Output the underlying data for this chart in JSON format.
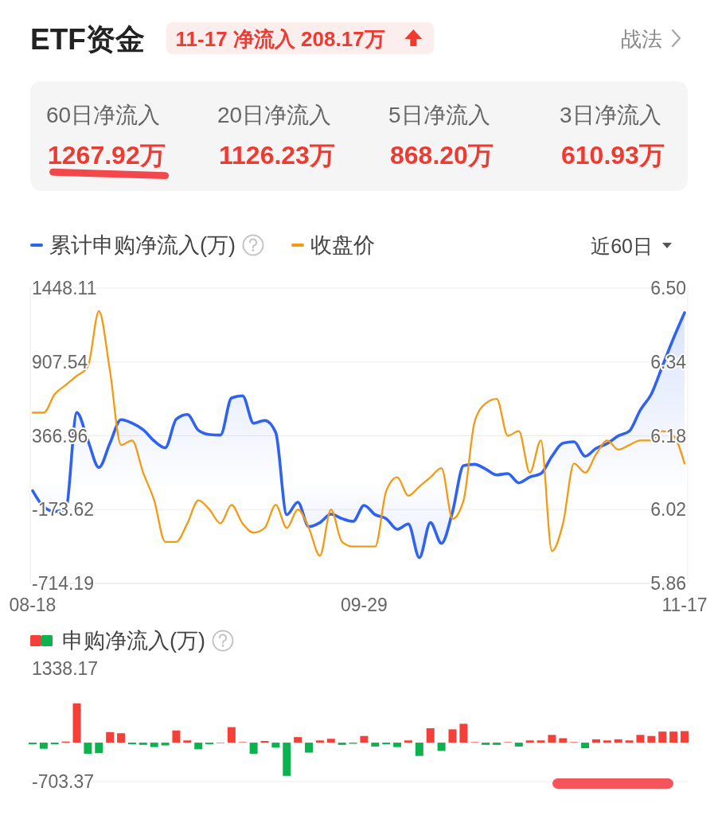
{
  "chart_data": [
    {
      "type": "other",
      "title": "ETF资金",
      "subtitle": "11-17 净流入 208.17万",
      "annotations": [
        "战法",
        "60日净流入",
        "1267.92万",
        "20日净流入",
        "1126.23万",
        "5日净流入",
        "868.20万",
        "3日净流入",
        "610.93万"
      ]
    },
    {
      "type": "line",
      "categories": [
        "08-18",
        null,
        null,
        null,
        null,
        null,
        null,
        null,
        null,
        null,
        null,
        null,
        null,
        null,
        null,
        null,
        null,
        null,
        null,
        null,
        null,
        null,
        null,
        null,
        null,
        null,
        null,
        null,
        null,
        null,
        "09-29",
        null,
        null,
        null,
        null,
        null,
        null,
        null,
        null,
        null,
        null,
        null,
        null,
        null,
        null,
        null,
        null,
        null,
        null,
        null,
        null,
        null,
        null,
        null,
        null,
        null,
        null,
        null,
        null,
        "11-17"
      ],
      "series": [
        {
          "name": "累计申购净流入(万)",
          "type": "area",
          "color": "#2f62ee",
          "values": [
            -36,
            -153,
            -188,
            -168,
            537,
            333,
            135,
            313,
            485,
            459,
            411,
            329,
            279,
            488,
            523,
            407,
            376,
            372,
            644,
            660,
            459,
            479,
            391,
            -211,
            -120,
            -299,
            -269,
            -207,
            -240,
            -260,
            -143,
            -211,
            -240,
            -318,
            -279,
            -526,
            -269,
            -421,
            -191,
            148,
            158,
            123,
            80,
            90,
            22,
            65,
            90,
            217,
            313,
            323,
            217,
            275,
            310,
            366,
            401,
            556,
            673,
            877,
            1081,
            1268
          ]
        },
        {
          "name": "收盘价",
          "type": "line",
          "color": "#f39a12",
          "axis": "y2",
          "values": [
            6.23,
            6.23,
            6.27,
            6.29,
            6.31,
            6.33,
            6.45,
            6.32,
            6.16,
            6.17,
            6.1,
            6.04,
            5.95,
            5.95,
            5.99,
            6.04,
            6.02,
            5.99,
            6.03,
            5.99,
            5.97,
            5.98,
            6.03,
            5.98,
            6.02,
            5.98,
            5.92,
            6.02,
            5.95,
            5.94,
            5.94,
            5.94,
            6.06,
            6.09,
            6.05,
            6.07,
            6.09,
            6.11,
            6.0,
            6.04,
            6.21,
            6.25,
            6.26,
            6.18,
            6.19,
            6.1,
            6.17,
            5.93,
            5.99,
            6.12,
            6.1,
            6.14,
            6.17,
            6.15,
            6.16,
            6.17,
            6.17,
            6.19,
            6.18,
            6.12
          ]
        }
      ],
      "ylim": [
        -714.19,
        1448.11
      ],
      "yticks": [
        -714.19,
        -173.62,
        366.96,
        907.54,
        1448.11
      ],
      "y2lim": [
        5.86,
        6.5
      ],
      "y2ticks": [
        5.86,
        6.02,
        6.18,
        6.34,
        {
          "value": 6.5,
          "label": "6.50"
        }
      ],
      "grid": "y",
      "legend": "top left",
      "annotations": [
        "近60日"
      ]
    },
    {
      "type": "bar",
      "categories": [
        null,
        null,
        null,
        null,
        null,
        null,
        null,
        null,
        null,
        null,
        null,
        null,
        null,
        null,
        null,
        null,
        null,
        null,
        null,
        null,
        null,
        null,
        null,
        null,
        null,
        null,
        null,
        null,
        null,
        null,
        null,
        null,
        null,
        null,
        null,
        null,
        null,
        null,
        null,
        null,
        null,
        null,
        null,
        null,
        null,
        null,
        null,
        null,
        null,
        null,
        null,
        null,
        null,
        null,
        null,
        null,
        null,
        null,
        null,
        null
      ],
      "series": [
        {
          "name": "申购净流入(万)",
          "colors": [
            "#0cb24e",
            "#0cb24e",
            "#0cb24e",
            "#f5403a",
            "#f5403a",
            "#0cb24e",
            "#0cb24e",
            "#f5403a",
            "#f5403a",
            "#0cb24e",
            "#0cb24e",
            "#0cb24e",
            "#0cb24e",
            "#f5403a",
            "#f5403a",
            "#0cb24e",
            "#0cb24e",
            "#0cb24e",
            "#f5403a",
            "#f5403a",
            "#0cb24e",
            "#f5403a",
            "#0cb24e",
            "#0cb24e",
            "#f5403a",
            "#0cb24e",
            "#f5403a",
            "#f5403a",
            "#0cb24e",
            "#0cb24e",
            "#f5403a",
            "#0cb24e",
            "#0cb24e",
            "#0cb24e",
            "#f5403a",
            "#0cb24e",
            "#f5403a",
            "#0cb24e",
            "#f5403a",
            "#f5403a",
            "#f5403a",
            "#0cb24e",
            "#0cb24e",
            "#f5403a",
            "#0cb24e",
            "#f5403a",
            "#f5403a",
            "#f5403a",
            "#f5403a",
            "#f5403a",
            "#0cb24e",
            "#f5403a",
            "#f5403a",
            "#f5403a",
            "#f5403a",
            "#f5403a",
            "#f5403a",
            "#f5403a",
            "#f5403a",
            "#f5403a"
          ],
          "values": [
            -30,
            -110,
            -30,
            20,
            710,
            -200,
            -190,
            190,
            170,
            -30,
            -40,
            -80,
            -50,
            220,
            40,
            -120,
            -30,
            -5,
            280,
            10,
            -200,
            30,
            -90,
            -600,
            100,
            -180,
            40,
            70,
            -40,
            -20,
            120,
            -70,
            -30,
            -80,
            40,
            -240,
            260,
            -150,
            240,
            340,
            10,
            -40,
            -40,
            10,
            -70,
            40,
            40,
            140,
            80,
            10,
            -100,
            60,
            40,
            60,
            40,
            140,
            120,
            200,
            200,
            208.17
          ]
        }
      ],
      "ylim": [
        -703.37,
        1338.17
      ],
      "yticks": [
        -703.37,
        1338.17
      ],
      "legend": "top left"
    }
  ]
}
